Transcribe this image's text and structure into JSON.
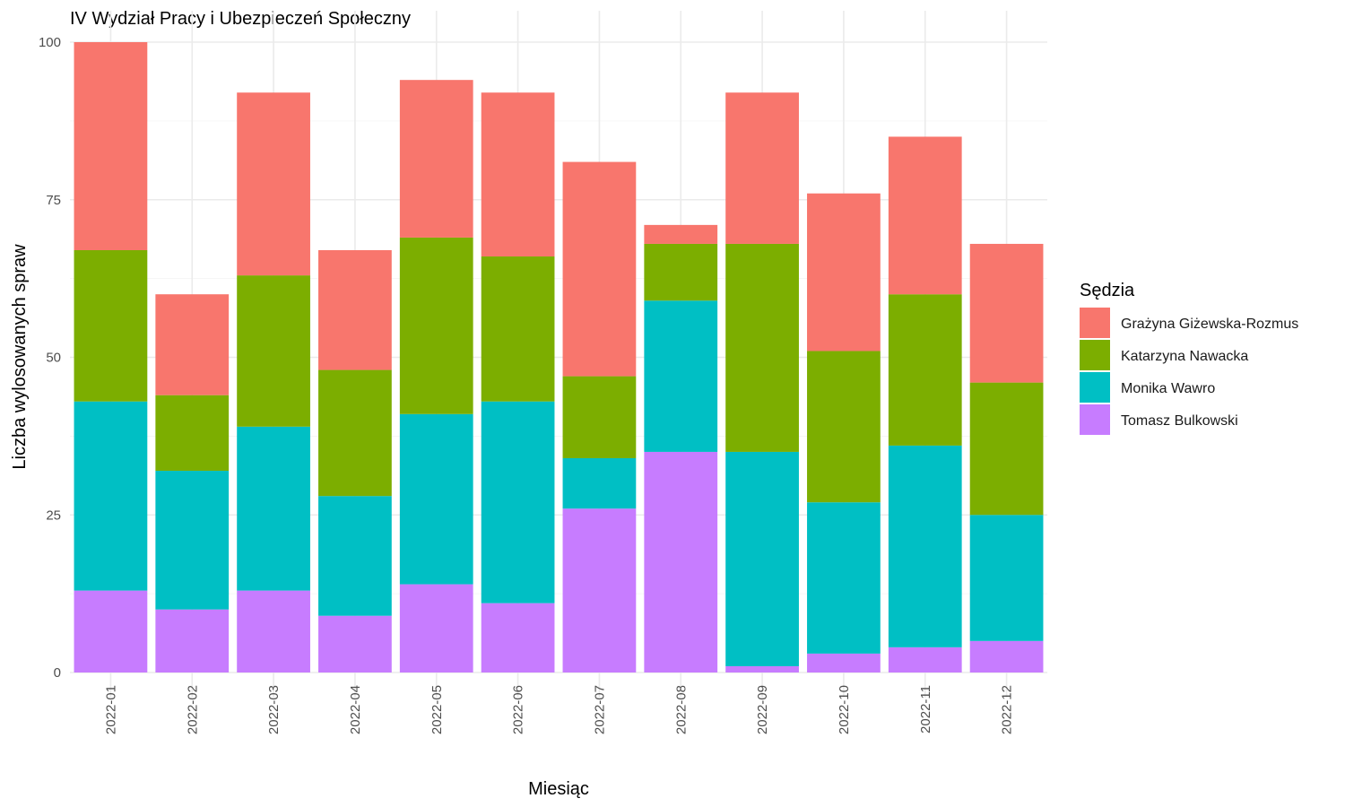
{
  "chart_data": {
    "type": "bar",
    "stacked": true,
    "title": "IV Wydział Pracy i Ubezpieczeń Społeczny",
    "xlabel": "Miesiąc",
    "ylabel": "Liczba wylosowanych spraw",
    "ylim": [
      0,
      100
    ],
    "yticks": [
      0,
      25,
      50,
      75,
      100
    ],
    "grid": true,
    "legend": {
      "title": "Sędzia",
      "position": "right"
    },
    "categories": [
      "2022-01",
      "2022-02",
      "2022-03",
      "2022-04",
      "2022-05",
      "2022-06",
      "2022-07",
      "2022-08",
      "2022-09",
      "2022-10",
      "2022-11",
      "2022-12"
    ],
    "series": [
      {
        "name": "Grażyna Giżewska-Rozmus",
        "color": "#F8766D",
        "values": [
          33,
          16,
          29,
          19,
          25,
          26,
          34,
          3,
          24,
          25,
          25,
          22
        ]
      },
      {
        "name": "Katarzyna Nawacka",
        "color": "#7CAE00",
        "values": [
          24,
          12,
          24,
          20,
          28,
          23,
          13,
          9,
          33,
          24,
          24,
          21
        ]
      },
      {
        "name": "Monika Wawro",
        "color": "#00BFC4",
        "values": [
          30,
          22,
          26,
          19,
          27,
          32,
          8,
          24,
          34,
          24,
          32,
          20
        ]
      },
      {
        "name": "Tomasz Bulkowski",
        "color": "#C77CFF",
        "values": [
          13,
          10,
          13,
          9,
          14,
          11,
          26,
          35,
          1,
          3,
          4,
          5
        ]
      }
    ]
  }
}
